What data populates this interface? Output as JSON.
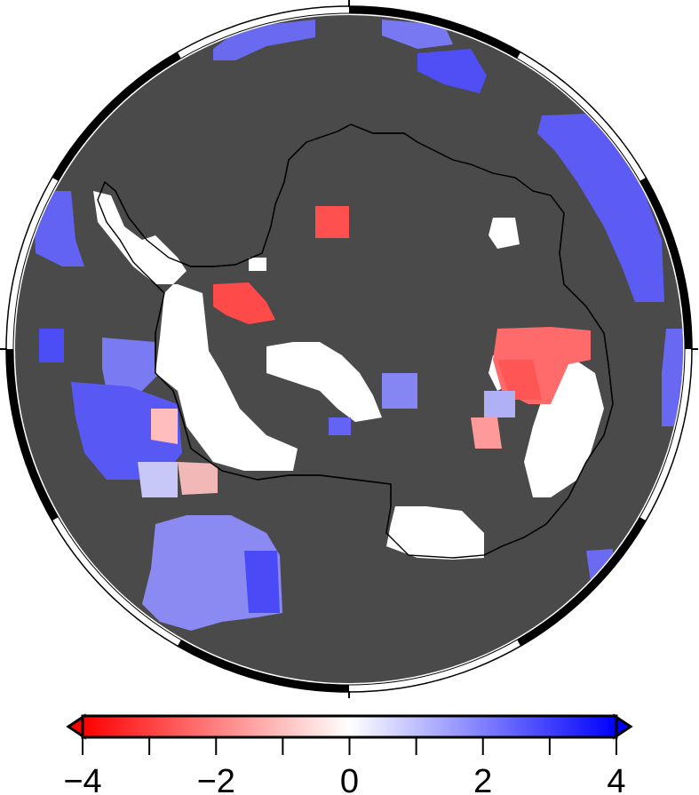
{
  "map": {
    "projection": "polar-stereographic-south",
    "land_fill_color": "#ffffff",
    "ocean_fill_color": "#4a4a4a",
    "coastline_color": "#000000",
    "frame_style": "checkered black/white border"
  },
  "colorbar": {
    "min": -4,
    "max": 4,
    "colors": [
      "#ff0000",
      "#ffffff",
      "#0000ff"
    ],
    "triangles": "both",
    "tick_labels": [
      "−4",
      "−2",
      "0",
      "2",
      "4"
    ],
    "tick_values": [
      -4,
      -3,
      -2,
      -1,
      0,
      1,
      2,
      3,
      4
    ]
  }
}
